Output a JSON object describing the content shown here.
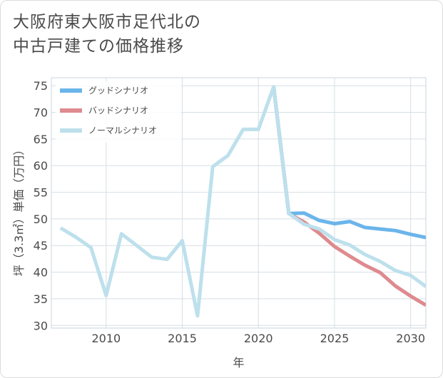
{
  "title": "大阪府東大阪市足代北の\n中古戸建ての価格推移",
  "chart_data": {
    "type": "line",
    "xlabel": "年",
    "ylabel": "坪（3.3㎡）単価（万円）",
    "xlim": [
      2006.4,
      2031
    ],
    "ylim": [
      29.5,
      76.5
    ],
    "xticks": [
      2010,
      2015,
      2020,
      2025,
      2030
    ],
    "yticks": [
      30,
      35,
      40,
      45,
      50,
      55,
      60,
      65,
      70,
      75
    ],
    "grid": true,
    "legend_position": "top-left",
    "series": [
      {
        "name": "グッドシナリオ",
        "color": "#6ab5ea",
        "x": [
          2021,
          2022,
          2023,
          2024,
          2025,
          2026,
          2027,
          2028,
          2029,
          2030,
          2031
        ],
        "y": [
          74.8,
          51.0,
          51.1,
          49.7,
          49.1,
          49.5,
          48.4,
          48.1,
          47.8,
          47.1,
          46.5
        ]
      },
      {
        "name": "バッドシナリオ",
        "color": "#de8a8e",
        "x": [
          2021,
          2022,
          2023,
          2024,
          2025,
          2026,
          2027,
          2028,
          2029,
          2030,
          2031
        ],
        "y": [
          74.8,
          51.0,
          49.4,
          47.3,
          44.8,
          43.0,
          41.3,
          39.9,
          37.4,
          35.5,
          33.8
        ]
      },
      {
        "name": "ノーマルシナリオ",
        "color": "#bde0ec",
        "x": [
          2007,
          2008,
          2009,
          2010,
          2011,
          2012,
          2013,
          2014,
          2015,
          2016,
          2017,
          2018,
          2019,
          2020,
          2021,
          2022,
          2023,
          2024,
          2025,
          2026,
          2027,
          2028,
          2029,
          2030,
          2031
        ],
        "y": [
          48.3,
          46.6,
          44.6,
          35.6,
          47.2,
          45.0,
          42.8,
          42.4,
          45.9,
          31.8,
          59.8,
          61.9,
          66.8,
          66.8,
          74.8,
          51.0,
          49.0,
          48.1,
          46.1,
          45.1,
          43.3,
          42.0,
          40.3,
          39.4,
          37.3
        ]
      }
    ]
  }
}
